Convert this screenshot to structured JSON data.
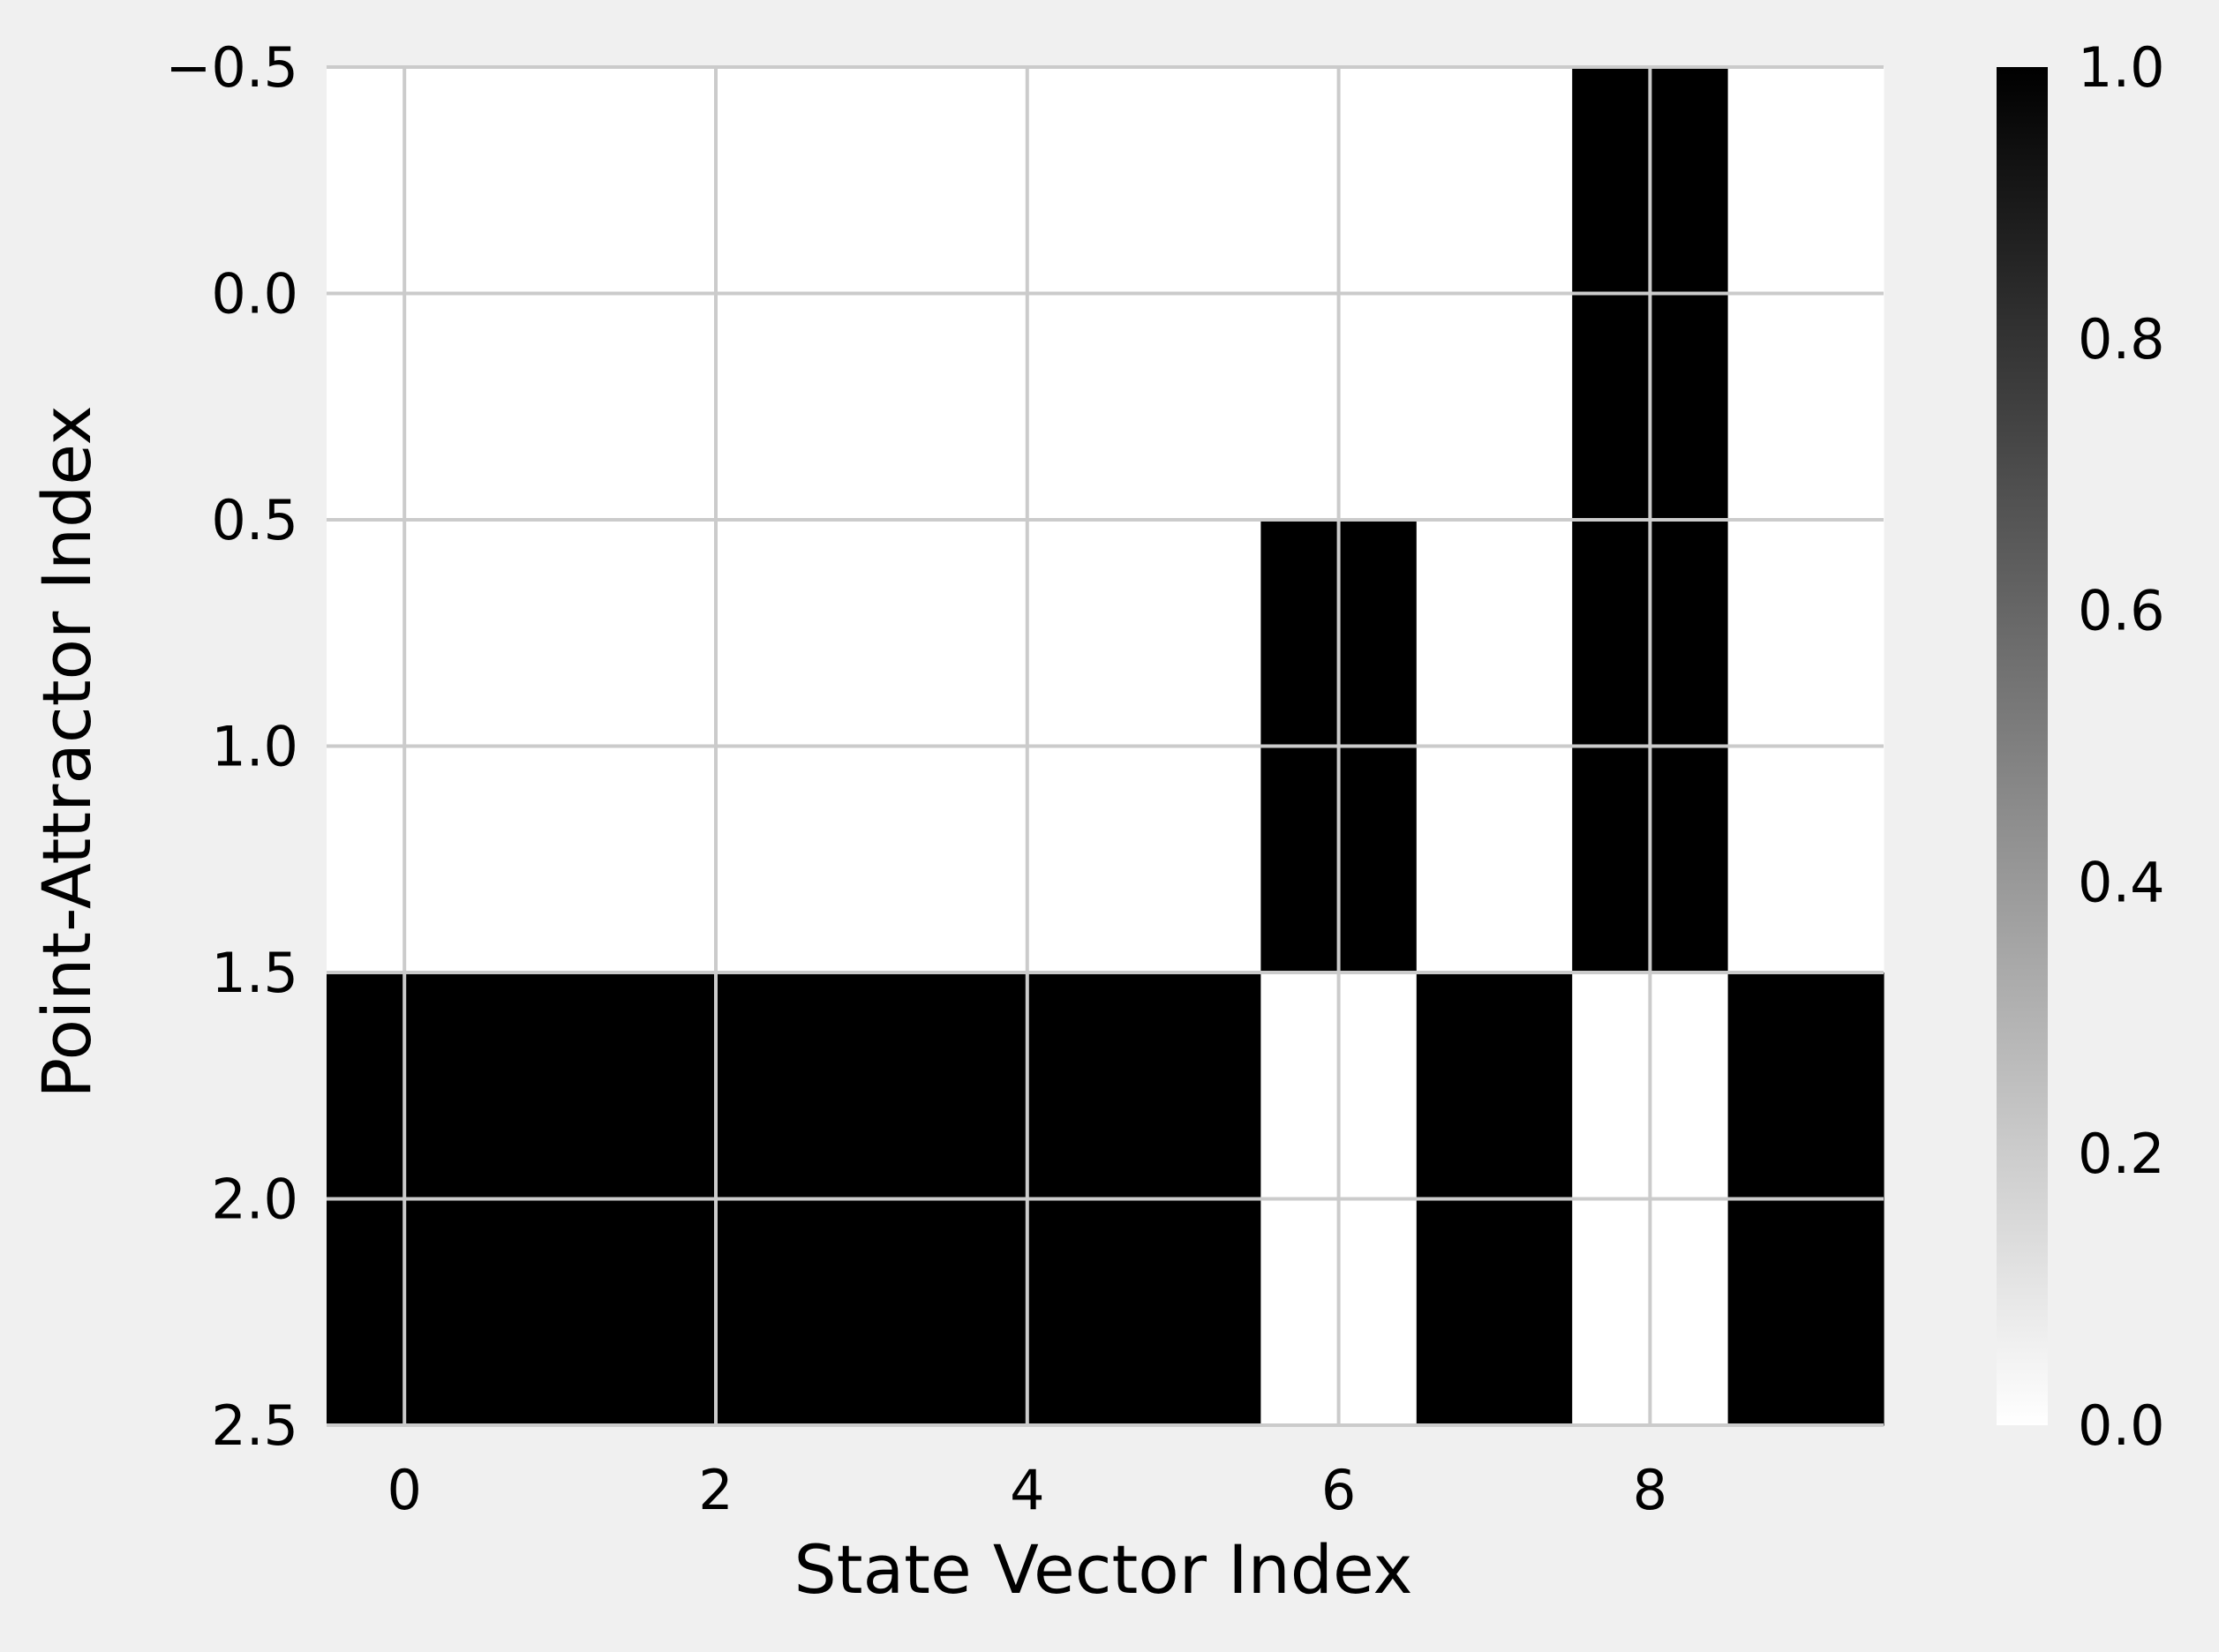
{
  "chart_data": {
    "type": "heatmap",
    "title": "",
    "xlabel": "State Vector Index",
    "ylabel": "Point-Attractor Index",
    "x_ticks": [
      0,
      2,
      4,
      6,
      8
    ],
    "x_tick_labels": [
      "0",
      "2",
      "4",
      "6",
      "8"
    ],
    "y_ticks": [
      -0.5,
      0.0,
      0.5,
      1.0,
      1.5,
      2.0,
      2.5
    ],
    "y_tick_labels": [
      "−0.5",
      "0.0",
      "0.5",
      "1.0",
      "1.5",
      "2.0",
      "2.5"
    ],
    "xlim": [
      -0.5,
      9.5
    ],
    "ylim": [
      2.5,
      -0.5
    ],
    "y_inverted": true,
    "grid": true,
    "colormap": "gray_r",
    "colors": {
      "low": "#ffffff",
      "high": "#000000",
      "grid": "#cbcbcb",
      "background": "#f0f0f0"
    },
    "rows": [
      {
        "index": 0,
        "values": [
          0,
          0,
          0,
          0,
          0,
          0,
          0,
          0,
          1,
          0
        ]
      },
      {
        "index": 1,
        "values": [
          0,
          0,
          0,
          0,
          0,
          0,
          1,
          0,
          1,
          0
        ]
      },
      {
        "index": 2,
        "values": [
          1,
          1,
          1,
          1,
          1,
          1,
          0,
          1,
          0,
          1
        ]
      }
    ],
    "colorbar": {
      "range": [
        0.0,
        1.0
      ],
      "ticks": [
        0.0,
        0.2,
        0.4,
        0.6,
        0.8,
        1.0
      ],
      "tick_labels": [
        "0.0",
        "0.2",
        "0.4",
        "0.6",
        "0.8",
        "1.0"
      ]
    }
  }
}
